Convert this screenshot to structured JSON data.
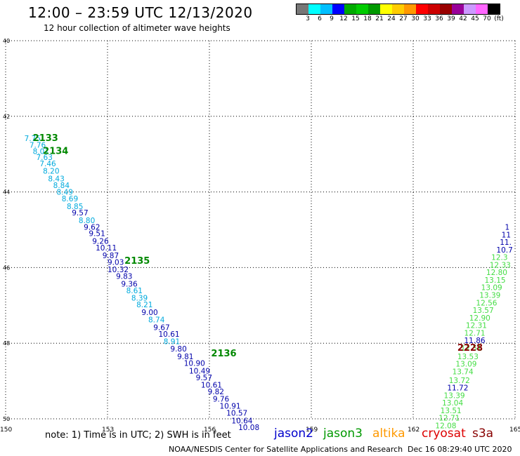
{
  "header": {
    "title": "12:00 – 23:59 UTC 12/13/2020",
    "subtitle": "12 hour collection of altimeter wave heights"
  },
  "colorbar": {
    "colors": [
      "#777777",
      "#00ffff",
      "#00bfff",
      "#0000ff",
      "#00aa00",
      "#00cc00",
      "#009900",
      "#ffff00",
      "#ffcc00",
      "#ff9900",
      "#ff0000",
      "#cc0000",
      "#990000",
      "#990099",
      "#cc99ff",
      "#ff66ff",
      "#000000"
    ],
    "labels": [
      "3",
      "6",
      "9",
      "12",
      "15",
      "18",
      "21",
      "24",
      "27",
      "30",
      "33",
      "36",
      "39",
      "42",
      "45",
      "70",
      "(ft)"
    ]
  },
  "axes": {
    "lon_ticks": [
      "150",
      "153",
      "156",
      "159",
      "162",
      "165"
    ],
    "lat_ticks": [
      "40",
      "42",
      "44",
      "46",
      "48",
      "50"
    ]
  },
  "chart_data": {
    "type": "scatter",
    "x_range": [
      150,
      165
    ],
    "y_range": [
      -40,
      -50
    ],
    "track_labels": [
      {
        "text": "2133",
        "lon": 150.8,
        "lat": -42.65,
        "color": "#008800"
      },
      {
        "text": "2134",
        "lon": 151.1,
        "lat": -43.0,
        "color": "#008800"
      },
      {
        "text": "2135",
        "lon": 153.5,
        "lat": -45.9,
        "color": "#008800"
      },
      {
        "text": "2136",
        "lon": 156.05,
        "lat": -48.35,
        "color": "#008800"
      },
      {
        "text": "2228",
        "lon": 163.3,
        "lat": -48.2,
        "color": "#880000"
      }
    ],
    "points": [
      {
        "v": "7.75",
        "lon": 150.55,
        "lat": -42.65,
        "c": "#00aadd"
      },
      {
        "v": "7.76",
        "lon": 150.7,
        "lat": -42.83,
        "c": "#00aadd"
      },
      {
        "v": "8.01",
        "lon": 150.8,
        "lat": -43.0,
        "c": "#00aadd"
      },
      {
        "v": "7.63",
        "lon": 150.9,
        "lat": -43.15,
        "c": "#00aadd"
      },
      {
        "v": "7.46",
        "lon": 151.0,
        "lat": -43.32,
        "c": "#00aadd"
      },
      {
        "v": "8.20",
        "lon": 151.1,
        "lat": -43.52,
        "c": "#00aadd"
      },
      {
        "v": "8.43",
        "lon": 151.25,
        "lat": -43.72,
        "c": "#00aadd"
      },
      {
        "v": "8.84",
        "lon": 151.4,
        "lat": -43.9,
        "c": "#00aadd"
      },
      {
        "v": "8.49",
        "lon": 151.5,
        "lat": -44.07,
        "c": "#00aadd"
      },
      {
        "v": "8.69",
        "lon": 151.65,
        "lat": -44.25,
        "c": "#00aadd"
      },
      {
        "v": "8.85",
        "lon": 151.8,
        "lat": -44.45,
        "c": "#00aadd"
      },
      {
        "v": "9.57",
        "lon": 151.95,
        "lat": -44.62,
        "c": "#0000aa"
      },
      {
        "v": "8.80",
        "lon": 152.15,
        "lat": -44.82,
        "c": "#00aadd"
      },
      {
        "v": "9.62",
        "lon": 152.3,
        "lat": -45.0,
        "c": "#0000aa"
      },
      {
        "v": "9.51",
        "lon": 152.45,
        "lat": -45.17,
        "c": "#0000aa"
      },
      {
        "v": "9.26",
        "lon": 152.55,
        "lat": -45.37,
        "c": "#0000aa"
      },
      {
        "v": "10.11",
        "lon": 152.65,
        "lat": -45.55,
        "c": "#0000aa"
      },
      {
        "v": "9.87",
        "lon": 152.85,
        "lat": -45.75,
        "c": "#0000aa"
      },
      {
        "v": "9.03",
        "lon": 153.0,
        "lat": -45.93,
        "c": "#0000aa"
      },
      {
        "v": "10.32",
        "lon": 153.0,
        "lat": -46.12,
        "c": "#0000aa"
      },
      {
        "v": "9.83",
        "lon": 153.25,
        "lat": -46.3,
        "c": "#0000aa"
      },
      {
        "v": "9.36",
        "lon": 153.4,
        "lat": -46.5,
        "c": "#0000aa"
      },
      {
        "v": "8.61",
        "lon": 153.55,
        "lat": -46.68,
        "c": "#00aadd"
      },
      {
        "v": "8.39",
        "lon": 153.7,
        "lat": -46.87,
        "c": "#00aadd"
      },
      {
        "v": "8.21",
        "lon": 153.85,
        "lat": -47.05,
        "c": "#00aadd"
      },
      {
        "v": "9.00",
        "lon": 154.0,
        "lat": -47.25,
        "c": "#0000aa"
      },
      {
        "v": "8.74",
        "lon": 154.2,
        "lat": -47.45,
        "c": "#00aadd"
      },
      {
        "v": "9.67",
        "lon": 154.35,
        "lat": -47.65,
        "c": "#0000aa"
      },
      {
        "v": "10.61",
        "lon": 154.5,
        "lat": -47.83,
        "c": "#0000aa"
      },
      {
        "v": "8.91",
        "lon": 154.65,
        "lat": -48.02,
        "c": "#00aadd"
      },
      {
        "v": "9.80",
        "lon": 154.85,
        "lat": -48.22,
        "c": "#0000aa"
      },
      {
        "v": "9.81",
        "lon": 155.05,
        "lat": -48.42,
        "c": "#0000aa"
      },
      {
        "v": "10.90",
        "lon": 155.25,
        "lat": -48.6,
        "c": "#0000aa"
      },
      {
        "v": "10.49",
        "lon": 155.4,
        "lat": -48.8,
        "c": "#0000aa"
      },
      {
        "v": "9.57",
        "lon": 155.6,
        "lat": -48.98,
        "c": "#0000aa"
      },
      {
        "v": "10.61",
        "lon": 155.75,
        "lat": -49.17,
        "c": "#0000aa"
      },
      {
        "v": "9.82",
        "lon": 155.95,
        "lat": -49.35,
        "c": "#0000aa"
      },
      {
        "v": "9.76",
        "lon": 156.1,
        "lat": -49.55,
        "c": "#0000aa"
      },
      {
        "v": "10.91",
        "lon": 156.3,
        "lat": -49.73,
        "c": "#0000aa"
      },
      {
        "v": "10.57",
        "lon": 156.5,
        "lat": -49.92,
        "c": "#0000aa"
      },
      {
        "v": "10.64",
        "lon": 156.65,
        "lat": -50.12,
        "c": "#0000aa"
      },
      {
        "v": "10.08",
        "lon": 156.85,
        "lat": -50.3,
        "c": "#0000aa"
      },
      {
        "v": "12.08",
        "lon": 162.65,
        "lat": -50.25,
        "c": "#44dd44"
      },
      {
        "v": "12.71",
        "lon": 162.75,
        "lat": -50.05,
        "c": "#44dd44"
      },
      {
        "v": "13.51",
        "lon": 162.8,
        "lat": -49.85,
        "c": "#44dd44"
      },
      {
        "v": "13.04",
        "lon": 162.85,
        "lat": -49.65,
        "c": "#44dd44"
      },
      {
        "v": "13.39",
        "lon": 162.9,
        "lat": -49.45,
        "c": "#44dd44"
      },
      {
        "v": "11.72",
        "lon": 163.0,
        "lat": -49.25,
        "c": "#0000aa"
      },
      {
        "v": "13.72",
        "lon": 163.05,
        "lat": -49.05,
        "c": "#44dd44"
      },
      {
        "v": "13.74",
        "lon": 163.15,
        "lat": -48.82,
        "c": "#44dd44"
      },
      {
        "v": "13.09",
        "lon": 163.25,
        "lat": -48.62,
        "c": "#44dd44"
      },
      {
        "v": "13.53",
        "lon": 163.3,
        "lat": -48.42,
        "c": "#44dd44"
      },
      {
        "v": "12.51",
        "lon": 163.4,
        "lat": -48.2,
        "c": "#44dd44"
      },
      {
        "v": "11.86",
        "lon": 163.5,
        "lat": -48.0,
        "c": "#0000aa"
      },
      {
        "v": "12.71",
        "lon": 163.5,
        "lat": -47.8,
        "c": "#44dd44"
      },
      {
        "v": "12.31",
        "lon": 163.55,
        "lat": -47.6,
        "c": "#44dd44"
      },
      {
        "v": "12.90",
        "lon": 163.65,
        "lat": -47.4,
        "c": "#44dd44"
      },
      {
        "v": "13.57",
        "lon": 163.75,
        "lat": -47.2,
        "c": "#44dd44"
      },
      {
        "v": "12.56",
        "lon": 163.85,
        "lat": -47.0,
        "c": "#44dd44"
      },
      {
        "v": "13.39",
        "lon": 163.95,
        "lat": -46.8,
        "c": "#44dd44"
      },
      {
        "v": "13.09",
        "lon": 164.0,
        "lat": -46.6,
        "c": "#44dd44"
      },
      {
        "v": "13.15",
        "lon": 164.1,
        "lat": -46.4,
        "c": "#44dd44"
      },
      {
        "v": "12.80",
        "lon": 164.15,
        "lat": -46.2,
        "c": "#44dd44"
      },
      {
        "v": "12.33",
        "lon": 164.25,
        "lat": -46.0,
        "c": "#44dd44"
      },
      {
        "v": "12.3",
        "lon": 164.3,
        "lat": -45.8,
        "c": "#44dd44"
      },
      {
        "v": "10.7",
        "lon": 164.45,
        "lat": -45.6,
        "c": "#0000aa"
      },
      {
        "v": "11.",
        "lon": 164.55,
        "lat": -45.4,
        "c": "#0000aa"
      },
      {
        "v": "11",
        "lon": 164.6,
        "lat": -45.2,
        "c": "#0000aa"
      },
      {
        "v": "1",
        "lon": 164.7,
        "lat": -45.0,
        "c": "#0000aa"
      }
    ]
  },
  "footer": {
    "note": "note:  1) Time is in UTC;  2) SWH is in feet",
    "satellites": [
      {
        "name": "jason2",
        "color": "#0000cc"
      },
      {
        "name": "jason3",
        "color": "#009900"
      },
      {
        "name": "altika",
        "color": "#ff9900"
      },
      {
        "name": "cryosat",
        "color": "#dd0000"
      },
      {
        "name": "s3a",
        "color": "#880000"
      }
    ],
    "credit": "NOAA/NESDIS Center for Satellite Applications and Research",
    "timestamp": "Dec 16 08:29:40 UTC 2020"
  }
}
